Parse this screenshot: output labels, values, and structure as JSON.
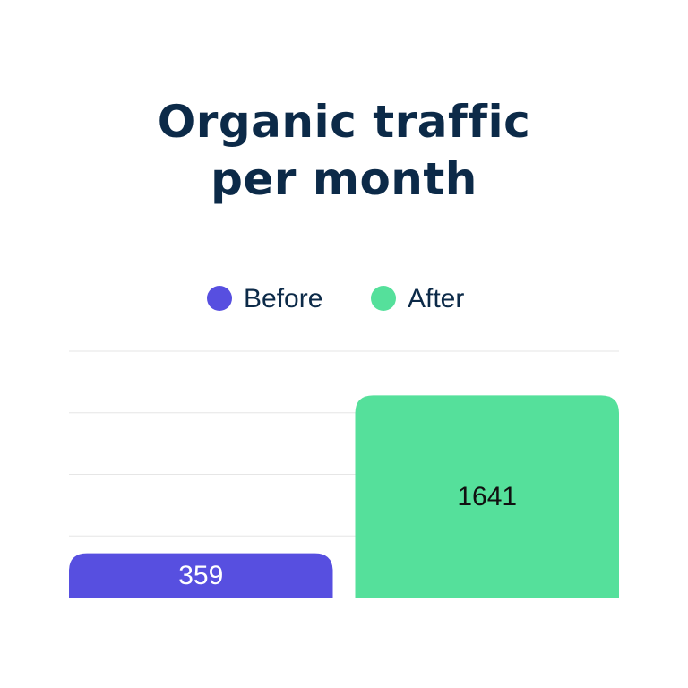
{
  "chart_data": {
    "type": "bar",
    "title": "Organic traffic per month",
    "categories": [
      null
    ],
    "series": [
      {
        "name": "Before",
        "color": "#574fe0",
        "values": [
          359
        ]
      },
      {
        "name": "After",
        "color": "#55e09b",
        "values": [
          1641
        ]
      }
    ],
    "ylim": [
      0,
      2000
    ],
    "yticks": [
      0,
      500,
      1000,
      1500,
      2000
    ],
    "grid": true
  }
}
